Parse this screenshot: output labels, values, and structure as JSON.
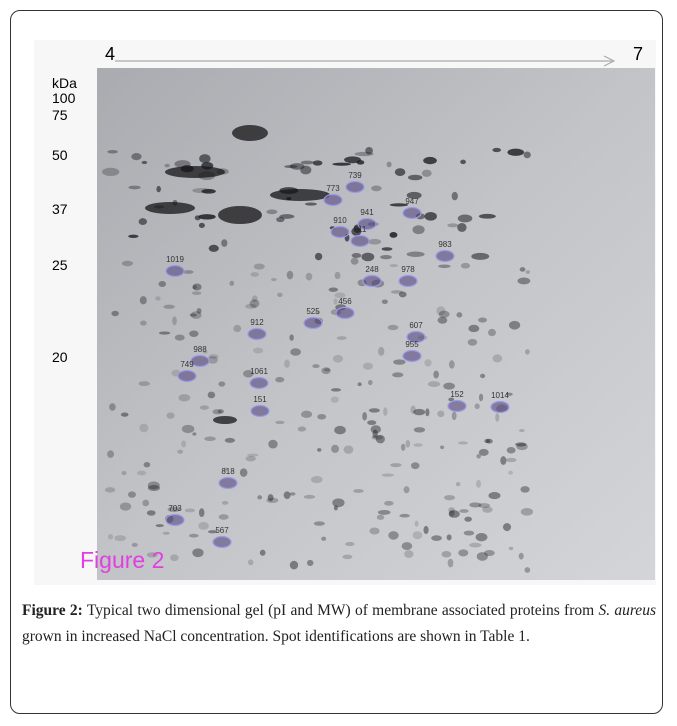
{
  "figure": {
    "ph_start": "4",
    "ph_end": "7",
    "mw_labels": [
      "kDa",
      "100",
      "75",
      "50",
      "37",
      "25",
      "20"
    ],
    "spots": [
      "739",
      "773",
      "941",
      "910",
      "311",
      "947",
      "983",
      "1019",
      "248",
      "978",
      "456",
      "525",
      "912",
      "607",
      "955",
      "988",
      "749",
      "1061",
      "151",
      "152",
      "1014",
      "818",
      "703",
      "567"
    ],
    "panel_label": "Figure 2"
  },
  "caption": {
    "label": "Figure 2:",
    "text_before": "Typical two dimensional gel (pI and MW) of membrane associated proteins from",
    "species": "S. aureus",
    "text_after": "grown in increased NaCl concentration. Spot identifications are shown in Table 1."
  }
}
